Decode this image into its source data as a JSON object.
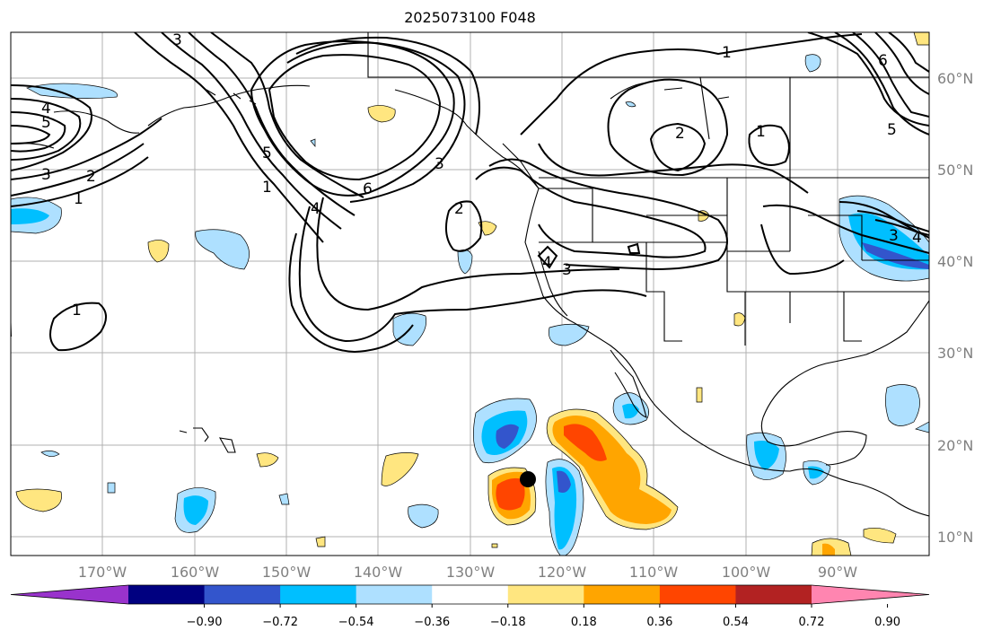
{
  "title": "2025073100 F048",
  "map": {
    "lat_labels": [
      "60°N",
      "50°N",
      "40°N",
      "30°N",
      "20°N",
      "10°N"
    ],
    "lon_labels": [
      "170°W",
      "160°W",
      "150°W",
      "140°W",
      "130°W",
      "120°W",
      "110°W",
      "100°W",
      "90°W"
    ],
    "contour_labels": [
      "1",
      "2",
      "3",
      "4",
      "5",
      "6"
    ]
  },
  "colorbar": {
    "ticks": [
      "−0.90",
      "−0.72",
      "−0.54",
      "−0.36",
      "−0.18",
      "0.18",
      "0.36",
      "0.54",
      "0.72",
      "0.90"
    ],
    "colors": [
      "#9933cc",
      "#000080",
      "#3355cc",
      "#00bfff",
      "#aee0ff",
      "#ffffff",
      "#ffe680",
      "#ffa500",
      "#ff4500",
      "#b22222",
      "#ff85b0"
    ]
  }
}
